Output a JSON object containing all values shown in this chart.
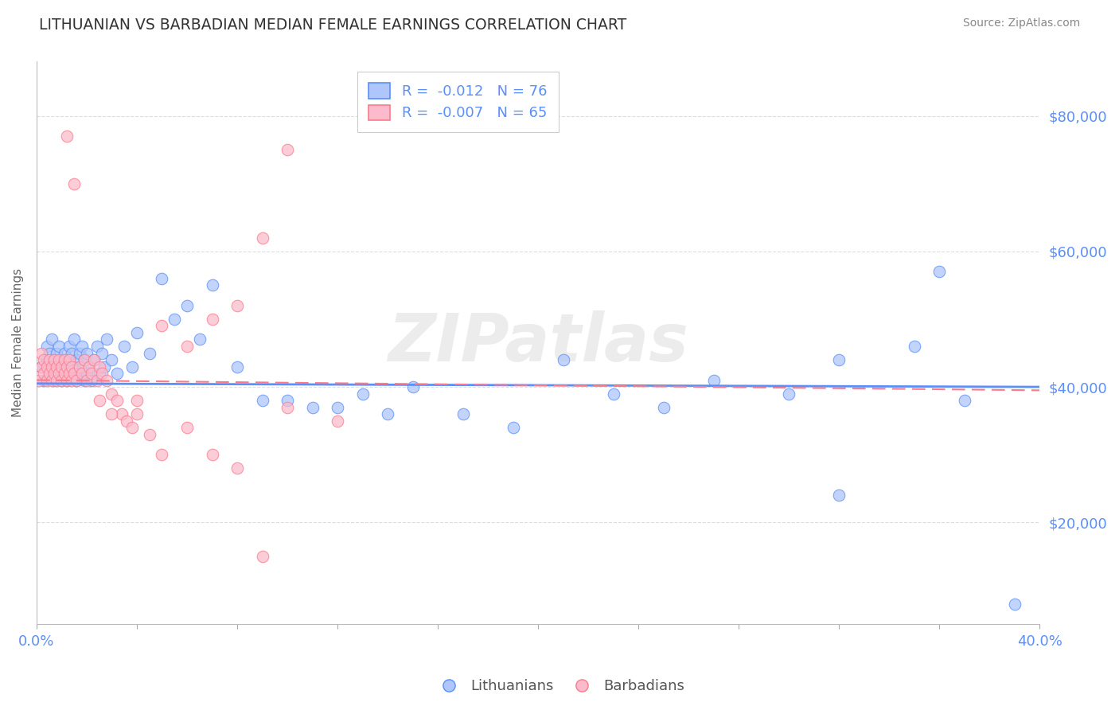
{
  "title": "LITHUANIAN VS BARBADIAN MEDIAN FEMALE EARNINGS CORRELATION CHART",
  "source": "Source: ZipAtlas.com",
  "ylabel": "Median Female Earnings",
  "xlim": [
    0.0,
    0.4
  ],
  "ylim": [
    5000,
    88000
  ],
  "yticks": [
    20000,
    40000,
    60000,
    80000
  ],
  "ytick_labels": [
    "$20,000",
    "$40,000",
    "$60,000",
    "$80,000"
  ],
  "xticks": [
    0.0,
    0.04,
    0.08,
    0.12,
    0.16,
    0.2,
    0.24,
    0.28,
    0.32,
    0.36,
    0.4
  ],
  "xtick_labels_show": [
    "0.0%",
    "",
    "",
    "",
    "",
    "",
    "",
    "",
    "",
    "",
    "40.0%"
  ],
  "blue_color": "#5B8FF9",
  "blue_fill": "#AEC6FB",
  "pink_color": "#F97B8B",
  "pink_fill": "#FBBBCC",
  "blue_R": -0.012,
  "blue_N": 76,
  "pink_R": -0.007,
  "pink_N": 65,
  "legend_label_blue": "Lithuanians",
  "legend_label_pink": "Barbadians",
  "watermark": "ZIPatlas",
  "background_color": "#FFFFFF",
  "grid_color": "#DDDDDD",
  "title_color": "#333333",
  "blue_scatter_x": [
    0.002,
    0.003,
    0.004,
    0.004,
    0.005,
    0.005,
    0.006,
    0.006,
    0.007,
    0.007,
    0.008,
    0.008,
    0.009,
    0.009,
    0.01,
    0.01,
    0.011,
    0.011,
    0.012,
    0.012,
    0.013,
    0.013,
    0.014,
    0.014,
    0.015,
    0.015,
    0.016,
    0.016,
    0.017,
    0.017,
    0.018,
    0.018,
    0.019,
    0.019,
    0.02,
    0.02,
    0.021,
    0.022,
    0.023,
    0.024,
    0.025,
    0.026,
    0.027,
    0.028,
    0.03,
    0.032,
    0.035,
    0.038,
    0.04,
    0.045,
    0.05,
    0.055,
    0.06,
    0.065,
    0.07,
    0.08,
    0.09,
    0.1,
    0.11,
    0.12,
    0.13,
    0.14,
    0.15,
    0.17,
    0.19,
    0.21,
    0.23,
    0.25,
    0.27,
    0.3,
    0.32,
    0.35,
    0.37,
    0.39,
    0.32,
    0.36
  ],
  "blue_scatter_y": [
    43000,
    41000,
    44000,
    46000,
    42000,
    45000,
    43000,
    47000,
    41000,
    44000,
    42000,
    45000,
    43000,
    46000,
    41000,
    44000,
    42000,
    45000,
    43000,
    41000,
    44000,
    46000,
    42000,
    45000,
    43000,
    47000,
    41000,
    44000,
    42000,
    45000,
    43000,
    46000,
    41000,
    44000,
    42000,
    45000,
    43000,
    41000,
    44000,
    46000,
    42000,
    45000,
    43000,
    47000,
    44000,
    42000,
    46000,
    43000,
    48000,
    45000,
    56000,
    50000,
    52000,
    47000,
    55000,
    43000,
    38000,
    38000,
    37000,
    37000,
    39000,
    36000,
    40000,
    36000,
    34000,
    44000,
    39000,
    37000,
    41000,
    39000,
    44000,
    46000,
    38000,
    8000,
    24000,
    57000
  ],
  "pink_scatter_x": [
    0.001,
    0.002,
    0.002,
    0.003,
    0.003,
    0.004,
    0.004,
    0.005,
    0.005,
    0.006,
    0.006,
    0.007,
    0.007,
    0.008,
    0.008,
    0.009,
    0.009,
    0.01,
    0.01,
    0.011,
    0.011,
    0.012,
    0.012,
    0.013,
    0.013,
    0.014,
    0.014,
    0.015,
    0.016,
    0.017,
    0.018,
    0.019,
    0.02,
    0.021,
    0.022,
    0.023,
    0.024,
    0.025,
    0.026,
    0.028,
    0.03,
    0.032,
    0.034,
    0.036,
    0.038,
    0.04,
    0.045,
    0.05,
    0.06,
    0.07,
    0.08,
    0.09,
    0.1,
    0.12,
    0.05,
    0.06,
    0.07,
    0.08,
    0.09,
    0.1,
    0.025,
    0.03,
    0.04,
    0.012,
    0.015
  ],
  "pink_scatter_y": [
    41000,
    43000,
    45000,
    42000,
    44000,
    41000,
    43000,
    42000,
    44000,
    41000,
    43000,
    42000,
    44000,
    41000,
    43000,
    42000,
    44000,
    41000,
    43000,
    42000,
    44000,
    41000,
    43000,
    42000,
    44000,
    41000,
    43000,
    42000,
    41000,
    43000,
    42000,
    44000,
    41000,
    43000,
    42000,
    44000,
    41000,
    43000,
    42000,
    41000,
    39000,
    38000,
    36000,
    35000,
    34000,
    36000,
    33000,
    30000,
    34000,
    30000,
    28000,
    15000,
    37000,
    35000,
    49000,
    46000,
    50000,
    52000,
    62000,
    75000,
    38000,
    36000,
    38000,
    77000,
    70000
  ]
}
